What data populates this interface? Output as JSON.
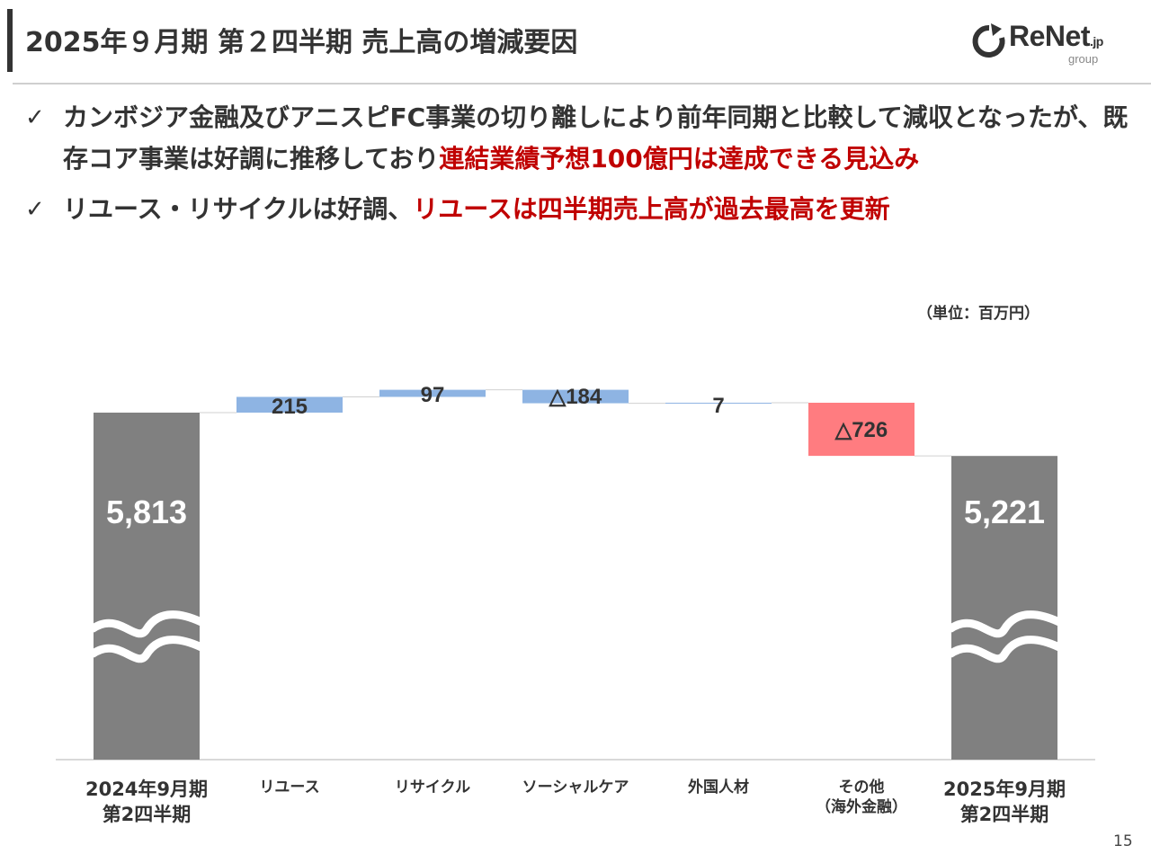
{
  "header": {
    "title": "2025年９月期 第２四半期 売上高の増減要因",
    "logo": {
      "text": "ReNet",
      "suffix": ".jp",
      "sub": "group",
      "icon": "refresh-arrow-icon"
    }
  },
  "bullets": [
    {
      "icon": "check-icon",
      "check": "✓",
      "text_normal": "カンボジア金融及びアニスピFC事業の切り離しにより前年同期と比較して減収となったが、既存コア事業は好調に推移しており",
      "text_highlight": "連結業績予想100億円は達成できる見込み"
    },
    {
      "icon": "check-icon",
      "check": "✓",
      "text_normal": "リユース・リサイクルは好調、",
      "text_highlight": "リユースは四半期売上高が過去最高を更新"
    }
  ],
  "unit_label": "（単位：百万円）",
  "page_number": "15",
  "colors": {
    "total": "#808080",
    "increase": "#8eb4e3",
    "decrease_small": "#8eb4e3",
    "decrease_large": "#ff7c80",
    "highlight_text": "#c00000"
  },
  "chart_data": {
    "type": "waterfall",
    "broken_axis": true,
    "categories": [
      [
        "2024年9月期",
        "第2四半期"
      ],
      [
        "リユース"
      ],
      [
        "リサイクル"
      ],
      [
        "ソーシャルケア"
      ],
      [
        "外国人材"
      ],
      [
        "その他",
        "（海外金融）"
      ],
      [
        "2025年9月期",
        "第2四半期"
      ]
    ],
    "values": [
      5813,
      215,
      97,
      -184,
      7,
      -726,
      5221
    ],
    "kinds": [
      "total",
      "delta",
      "delta",
      "delta",
      "delta",
      "delta",
      "total"
    ],
    "labels": [
      "5,813",
      "215",
      "97",
      "△184",
      "7",
      "△726",
      "5,221"
    ]
  }
}
